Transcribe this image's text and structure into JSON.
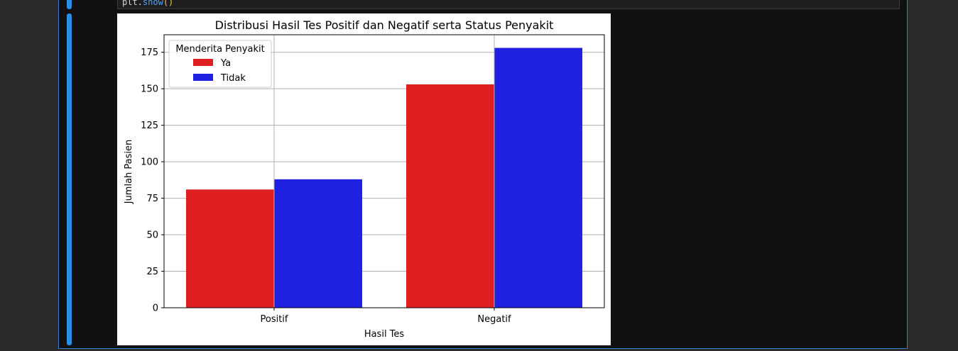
{
  "notebook": {
    "code_tail": {
      "object": "plt.",
      "method": "show",
      "parens": "()"
    }
  },
  "colors": {
    "accent": "#2b8fe6",
    "series_ya": "#e02020",
    "series_tidak": "#2020e0"
  },
  "chart_data": {
    "type": "bar",
    "title": "Distribusi Hasil Tes Positif dan Negatif serta Status Penyakit",
    "xlabel": "Hasil Tes",
    "ylabel": "Jumlah Pasien",
    "categories": [
      "Positif",
      "Negatif"
    ],
    "series": [
      {
        "name": "Ya",
        "values": [
          81,
          153
        ],
        "color": "#e02020"
      },
      {
        "name": "Tidak",
        "values": [
          88,
          178
        ],
        "color": "#2020e0"
      }
    ],
    "ylim": [
      0,
      187
    ],
    "yticks": [
      0,
      25,
      50,
      75,
      100,
      125,
      150,
      175
    ],
    "grid": true,
    "legend": {
      "title": "Menderita Penyakit",
      "placement": "top-left"
    }
  }
}
